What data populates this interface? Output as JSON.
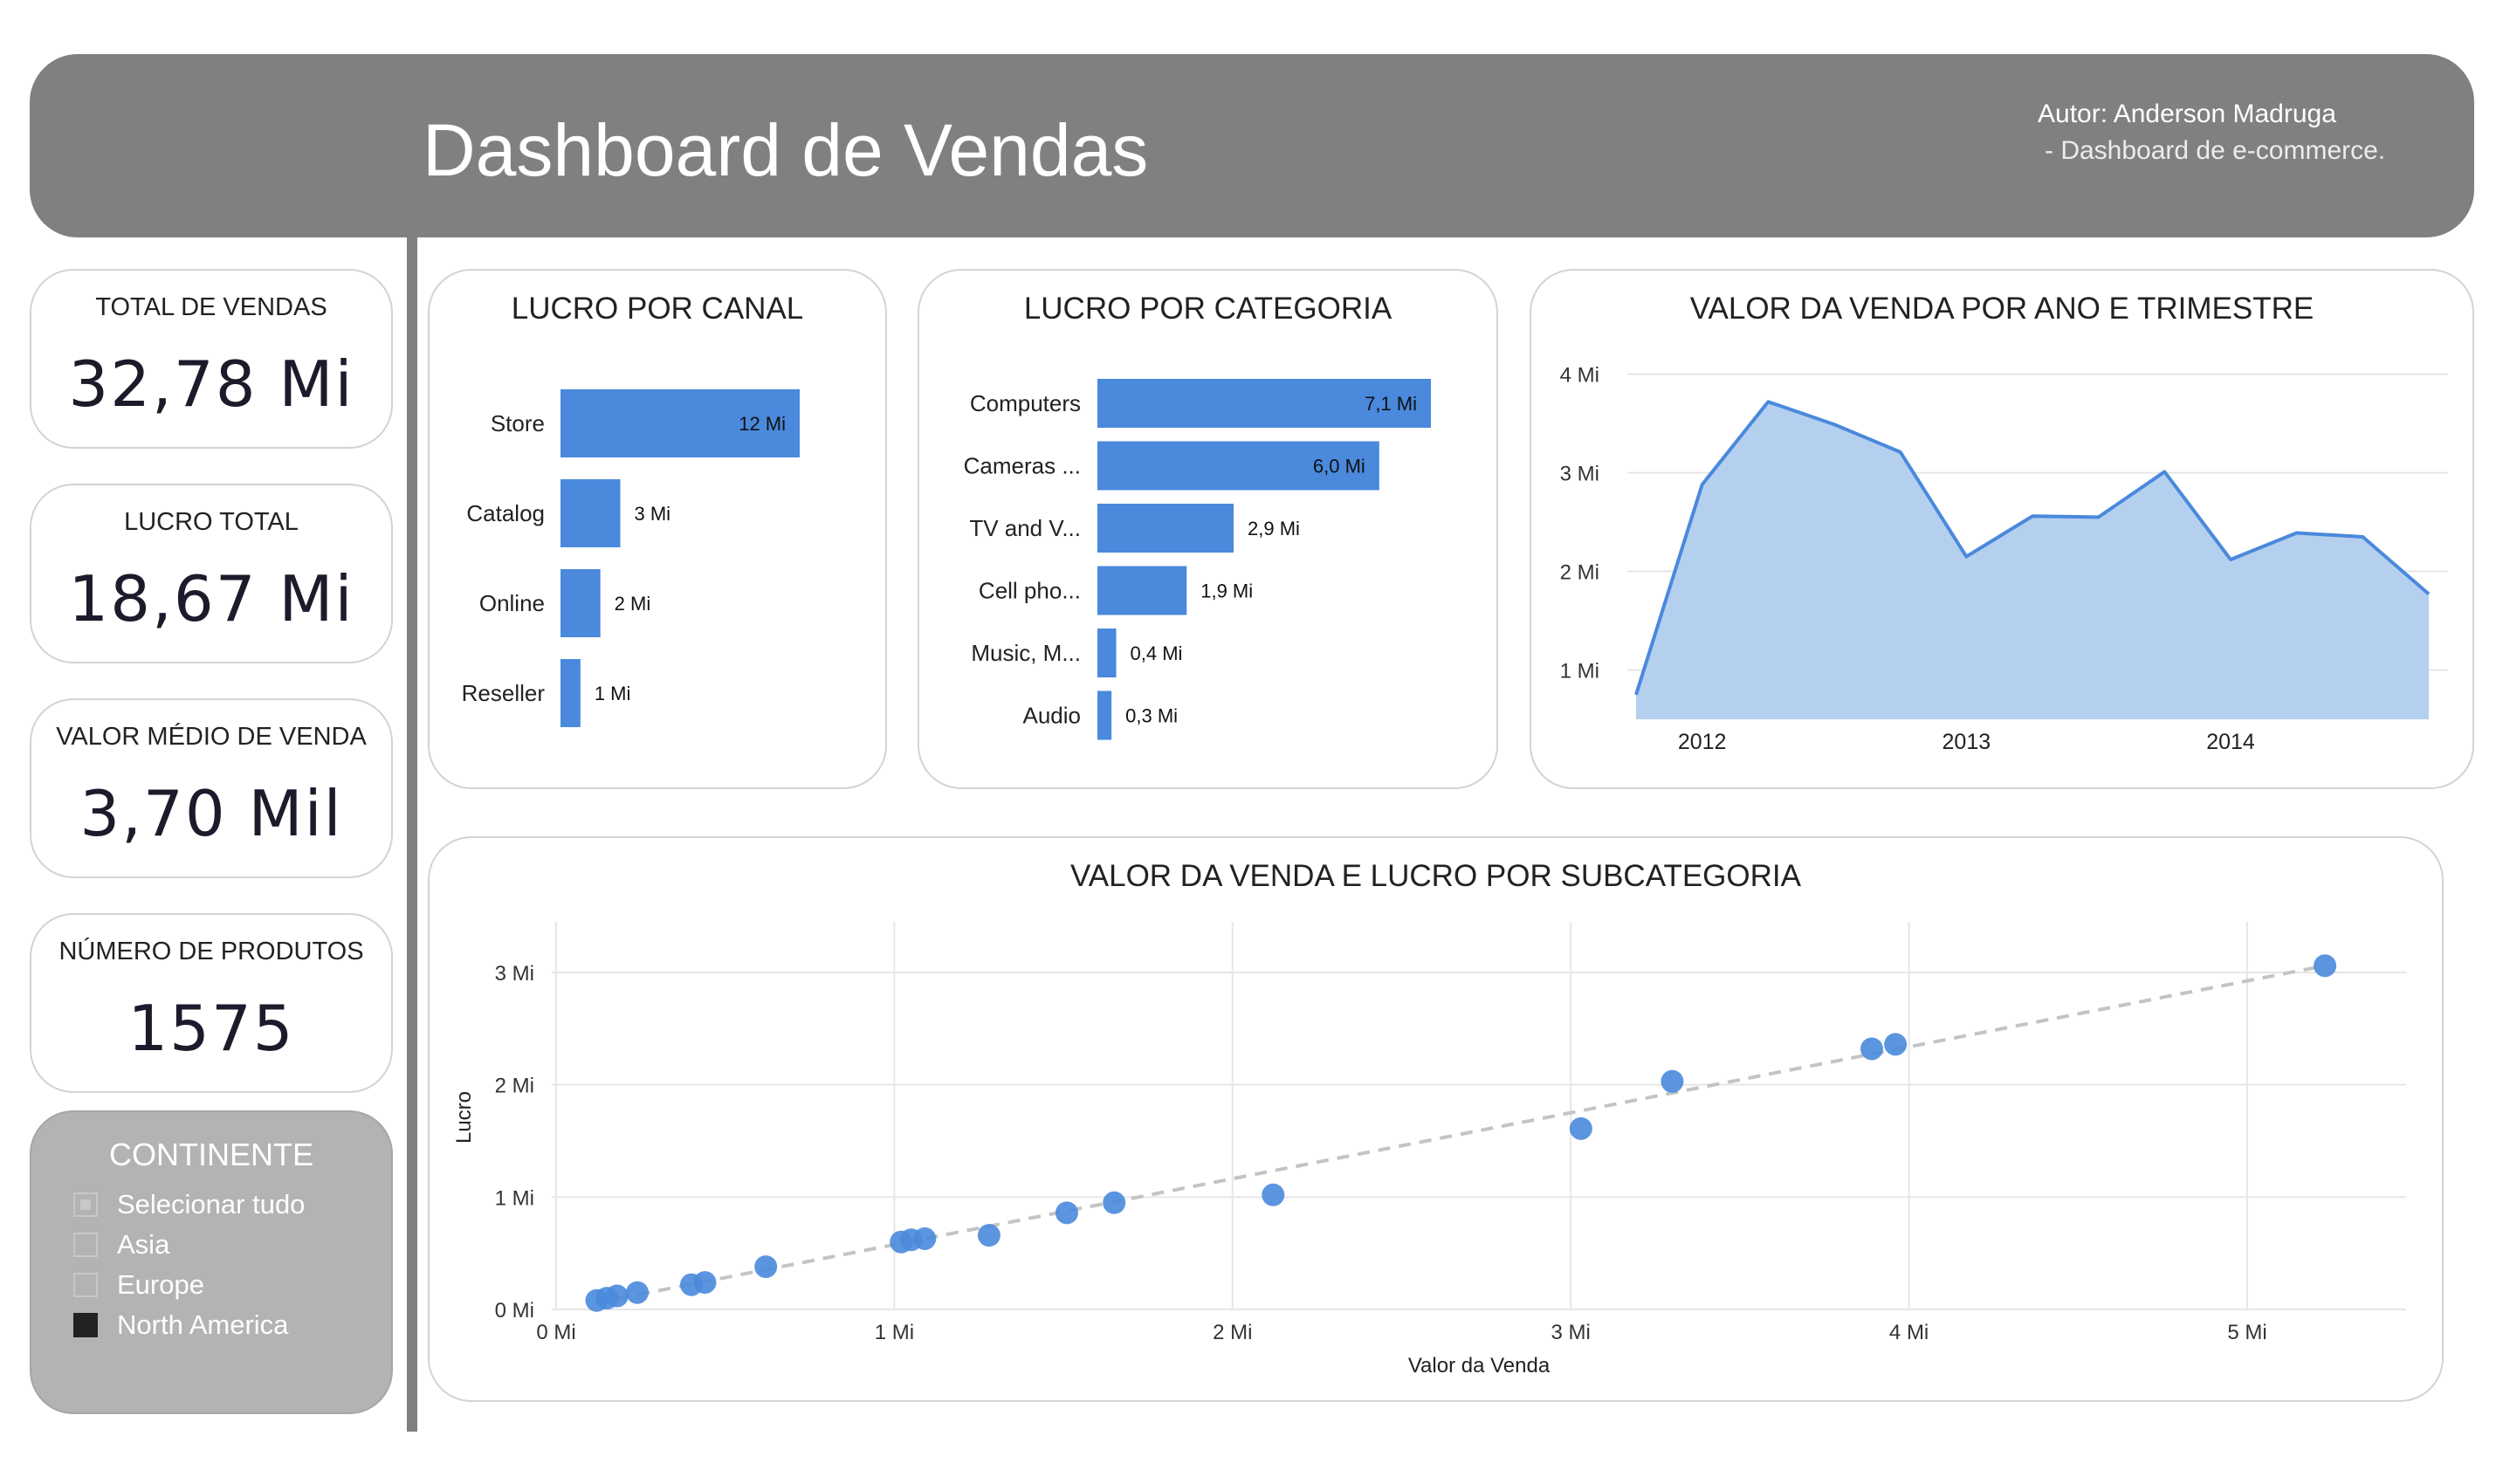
{
  "header": {
    "title": "Dashboard de Vendas",
    "author": "Autor: Anderson Madruga",
    "subtitle": "- Dashboard de e-commerce."
  },
  "kpis": [
    {
      "label": "TOTAL DE VENDAS",
      "value": "32,78 Mi"
    },
    {
      "label": "LUCRO TOTAL",
      "value": "18,67 Mi"
    },
    {
      "label": "VALOR MÉDIO DE VENDA",
      "value": "3,70 Mil"
    },
    {
      "label": "NÚMERO DE PRODUTOS",
      "value": "1575"
    }
  ],
  "slicer": {
    "title": "CONTINENTE",
    "items": [
      {
        "label": "Selecionar tudo",
        "state": "partial"
      },
      {
        "label": "Asia",
        "state": "unchecked"
      },
      {
        "label": "Europe",
        "state": "unchecked"
      },
      {
        "label": "North America",
        "state": "checked"
      }
    ]
  },
  "colors": {
    "bar": "#4a89dc",
    "area_fill": "#b5d0ef",
    "line": "#4a89dc",
    "panel_border": "#d3d3d3",
    "header_bg": "#808080",
    "slicer_bg": "#b3b3b3"
  },
  "chart_data": [
    {
      "type": "bar",
      "orientation": "horizontal",
      "title": "LUCRO POR CANAL",
      "categories": [
        "Store",
        "Catalog",
        "Online",
        "Reseller"
      ],
      "values": [
        12,
        3,
        2,
        1
      ],
      "data_labels": [
        "12 Mi",
        "3 Mi",
        "2 Mi",
        "1 Mi"
      ],
      "unit": "Mi"
    },
    {
      "type": "bar",
      "orientation": "horizontal",
      "title": "LUCRO POR CATEGORIA",
      "categories": [
        "Computers",
        "Cameras ...",
        "TV and V...",
        "Cell pho...",
        "Music, M...",
        "Audio"
      ],
      "values": [
        7.1,
        6.0,
        2.9,
        1.9,
        0.4,
        0.3
      ],
      "data_labels": [
        "7,1 Mi",
        "6,0 Mi",
        "2,9 Mi",
        "1,9 Mi",
        "0,4 Mi",
        "0,3 Mi"
      ],
      "unit": "Mi"
    },
    {
      "type": "area",
      "title": "VALOR DA VENDA POR ANO E TRIMESTRE",
      "x_labels": [
        "2012",
        "2013",
        "2014"
      ],
      "x": [
        "2011 Q4",
        "2012 Q1",
        "2012 Q2",
        "2012 Q3",
        "2012 Q4",
        "2013 Q1",
        "2013 Q2",
        "2013 Q3",
        "2013 Q4",
        "2014 Q1",
        "2014 Q2",
        "2014 Q3",
        "2014 Q4"
      ],
      "values": [
        0.75,
        2.88,
        3.72,
        3.49,
        3.21,
        2.15,
        2.56,
        2.55,
        3.01,
        2.12,
        2.39,
        2.35,
        1.77
      ],
      "yticks": [
        1,
        2,
        3,
        4
      ],
      "ytick_labels": [
        "1 Mi",
        "2 Mi",
        "3 Mi",
        "4 Mi"
      ],
      "ylim": [
        0.5,
        4.2
      ],
      "grid": true
    },
    {
      "type": "scatter",
      "title": "VALOR DA VENDA E LUCRO POR SUBCATEGORIA",
      "xlabel": "Valor da Venda",
      "ylabel": "Lucro",
      "xlim": [
        0,
        5.5
      ],
      "ylim": [
        0,
        3.5
      ],
      "xticks": [
        0,
        1,
        2,
        3,
        4,
        5
      ],
      "xtick_labels": [
        "0 Mi",
        "1 Mi",
        "2 Mi",
        "3 Mi",
        "4 Mi",
        "5 Mi"
      ],
      "yticks": [
        0,
        1,
        2,
        3
      ],
      "ytick_labels": [
        "0 Mi",
        "1 Mi",
        "2 Mi",
        "3 Mi"
      ],
      "points": [
        {
          "x": 0.12,
          "y": 0.08
        },
        {
          "x": 0.15,
          "y": 0.1
        },
        {
          "x": 0.18,
          "y": 0.12
        },
        {
          "x": 0.24,
          "y": 0.15
        },
        {
          "x": 0.4,
          "y": 0.22
        },
        {
          "x": 0.44,
          "y": 0.24
        },
        {
          "x": 0.62,
          "y": 0.38
        },
        {
          "x": 1.02,
          "y": 0.6
        },
        {
          "x": 1.05,
          "y": 0.62
        },
        {
          "x": 1.09,
          "y": 0.63
        },
        {
          "x": 1.28,
          "y": 0.66
        },
        {
          "x": 1.51,
          "y": 0.86
        },
        {
          "x": 1.65,
          "y": 0.95
        },
        {
          "x": 2.12,
          "y": 1.02
        },
        {
          "x": 3.03,
          "y": 1.61
        },
        {
          "x": 3.3,
          "y": 2.03
        },
        {
          "x": 3.89,
          "y": 2.32
        },
        {
          "x": 3.96,
          "y": 2.36
        },
        {
          "x": 5.23,
          "y": 3.06
        }
      ],
      "trendline": {
        "x1": 0.12,
        "y1": 0.06,
        "x2": 5.23,
        "y2": 3.06
      },
      "grid": true
    }
  ]
}
